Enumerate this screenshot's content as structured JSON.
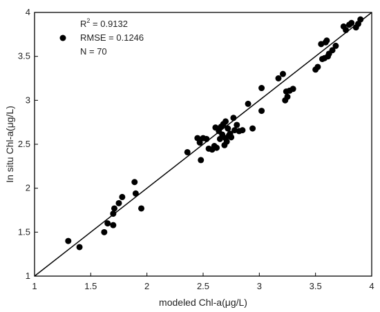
{
  "chart_data": {
    "type": "scatter",
    "xlabel": "modeled Chl-a(μg/L)",
    "ylabel": "In situ Chl-a(μg/L)",
    "xlim": [
      1,
      4
    ],
    "ylim": [
      1,
      4
    ],
    "xticks": [
      "1",
      "1.5",
      "2",
      "2.5",
      "3",
      "3.5",
      "4"
    ],
    "yticks": [
      "1",
      "1.5",
      "2",
      "2.5",
      "3",
      "3.5",
      "4"
    ],
    "grid": false,
    "legend_position": "top-left",
    "reference_line": "1:1",
    "stats": {
      "r2_label": "R",
      "r2_sup": "2",
      "r2_value": " = 0.9132",
      "rmse": "RMSE = 0.1246",
      "n": "N = 70"
    },
    "colors": {
      "marker": "#000000",
      "line": "#000000"
    },
    "points": [
      [
        1.3,
        1.4
      ],
      [
        1.4,
        1.33
      ],
      [
        1.62,
        1.5
      ],
      [
        1.65,
        1.6
      ],
      [
        1.7,
        1.58
      ],
      [
        1.7,
        1.71
      ],
      [
        1.71,
        1.77
      ],
      [
        1.75,
        1.83
      ],
      [
        1.78,
        1.9
      ],
      [
        1.89,
        2.07
      ],
      [
        1.9,
        1.94
      ],
      [
        1.95,
        1.77
      ],
      [
        2.36,
        2.41
      ],
      [
        2.45,
        2.57
      ],
      [
        2.47,
        2.52
      ],
      [
        2.48,
        2.32
      ],
      [
        2.5,
        2.57
      ],
      [
        2.53,
        2.56
      ],
      [
        2.55,
        2.45
      ],
      [
        2.58,
        2.44
      ],
      [
        2.6,
        2.48
      ],
      [
        2.61,
        2.69
      ],
      [
        2.62,
        2.46
      ],
      [
        2.64,
        2.65
      ],
      [
        2.65,
        2.56
      ],
      [
        2.66,
        2.7
      ],
      [
        2.67,
        2.61
      ],
      [
        2.68,
        2.73
      ],
      [
        2.69,
        2.49
      ],
      [
        2.7,
        2.76
      ],
      [
        2.7,
        2.57
      ],
      [
        2.71,
        2.53
      ],
      [
        2.72,
        2.68
      ],
      [
        2.73,
        2.6
      ],
      [
        2.74,
        2.62
      ],
      [
        2.75,
        2.58
      ],
      [
        2.77,
        2.8
      ],
      [
        2.78,
        2.66
      ],
      [
        2.8,
        2.72
      ],
      [
        2.82,
        2.65
      ],
      [
        2.85,
        2.66
      ],
      [
        2.9,
        2.96
      ],
      [
        2.94,
        2.68
      ],
      [
        3.02,
        3.14
      ],
      [
        3.02,
        2.88
      ],
      [
        3.17,
        3.25
      ],
      [
        3.21,
        3.3
      ],
      [
        3.23,
        3.0
      ],
      [
        3.24,
        3.1
      ],
      [
        3.25,
        3.04
      ],
      [
        3.27,
        3.11
      ],
      [
        3.3,
        3.13
      ],
      [
        3.5,
        3.35
      ],
      [
        3.52,
        3.38
      ],
      [
        3.55,
        3.64
      ],
      [
        3.56,
        3.47
      ],
      [
        3.58,
        3.48
      ],
      [
        3.59,
        3.66
      ],
      [
        3.6,
        3.68
      ],
      [
        3.61,
        3.5
      ],
      [
        3.62,
        3.53
      ],
      [
        3.65,
        3.57
      ],
      [
        3.68,
        3.62
      ],
      [
        3.75,
        3.84
      ],
      [
        3.77,
        3.8
      ],
      [
        3.8,
        3.86
      ],
      [
        3.82,
        3.88
      ],
      [
        3.86,
        3.83
      ],
      [
        3.88,
        3.87
      ],
      [
        3.9,
        3.92
      ]
    ]
  }
}
